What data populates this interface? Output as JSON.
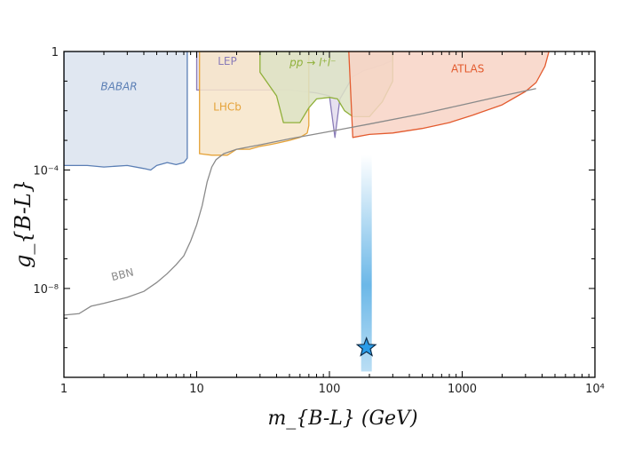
{
  "chart_data": {
    "type": "area",
    "xlabel": "m_{B-L} (GeV)",
    "ylabel": "g_{B-L}",
    "x_scale": "log",
    "y_scale": "log",
    "xlim": [
      1,
      10000
    ],
    "ylim_log10": [
      -11,
      0
    ],
    "x_tick_labels": [
      "1",
      "10",
      "100",
      "1000",
      "10⁴"
    ],
    "y_tick_labels": [
      "1",
      "10⁻⁴",
      "10⁻⁸"
    ],
    "grid": false,
    "legend": "none",
    "region_labels": {
      "babar": "BABAR",
      "lep": "LEP",
      "lhcb": "LHCb",
      "pp": "pp → l⁺l⁻",
      "atlas": "ATLAS",
      "bbn": "BBN"
    },
    "colors": {
      "babar_fill": "#dbe3ee",
      "babar_line": "#5b7fb5",
      "lep_fill": "#e3dced",
      "lep_line": "#8a7cb8",
      "lhcb_fill": "#f7e5c9",
      "lhcb_line": "#e5a33a",
      "pp_fill": "#dde3c5",
      "pp_line": "#8fb03a",
      "atlas_fill": "#f8d3c6",
      "atlas_line": "#e35b2f",
      "bbn_line": "#8a8a8a",
      "band": "#3aa0e0",
      "star_fill": "#2a9ce8"
    },
    "regions": [
      {
        "name": "BABAR",
        "boundary": [
          [
            1,
            -3.85
          ],
          [
            1.5,
            -3.85
          ],
          [
            2,
            -3.9
          ],
          [
            3,
            -3.85
          ],
          [
            4,
            -3.95
          ],
          [
            4.5,
            -4.0
          ],
          [
            5,
            -3.85
          ],
          [
            6,
            -3.75
          ],
          [
            7,
            -3.82
          ],
          [
            8,
            -3.75
          ],
          [
            8.5,
            -3.6
          ],
          [
            8.5,
            0
          ],
          [
            1,
            0
          ]
        ]
      },
      {
        "name": "LEP",
        "boundary": [
          [
            10,
            -1.3
          ],
          [
            50,
            -1.3
          ],
          [
            80,
            -1.4
          ],
          [
            100,
            -1.5
          ],
          [
            110,
            -2.9
          ],
          [
            120,
            -1.6
          ],
          [
            150,
            -0.85
          ],
          [
            180,
            -0.65
          ],
          [
            250,
            -0.45
          ],
          [
            300,
            -0.3
          ],
          [
            300,
            0
          ],
          [
            10,
            0
          ]
        ]
      },
      {
        "name": "LHCb",
        "boundary": [
          [
            10.5,
            -3.45
          ],
          [
            13,
            -3.5
          ],
          [
            17,
            -3.5
          ],
          [
            20,
            -3.3
          ],
          [
            25,
            -3.3
          ],
          [
            30,
            -3.2
          ],
          [
            35,
            -3.15
          ],
          [
            40,
            -3.1
          ],
          [
            50,
            -3.0
          ],
          [
            60,
            -2.9
          ],
          [
            68,
            -2.75
          ],
          [
            70,
            -2.5
          ],
          [
            70,
            0
          ],
          [
            10.5,
            0
          ]
        ]
      },
      {
        "name": "pp → l⁺l⁻",
        "boundary": [
          [
            30,
            -0.7
          ],
          [
            40,
            -1.5
          ],
          [
            45,
            -2.4
          ],
          [
            60,
            -2.4
          ],
          [
            70,
            -1.9
          ],
          [
            80,
            -1.6
          ],
          [
            100,
            -1.55
          ],
          [
            115,
            -1.6
          ],
          [
            130,
            -2.0
          ],
          [
            150,
            -2.2
          ],
          [
            200,
            -2.2
          ],
          [
            250,
            -1.7
          ],
          [
            300,
            -1.0
          ],
          [
            300,
            0
          ],
          [
            30,
            0
          ]
        ]
      },
      {
        "name": "ATLAS",
        "boundary": [
          [
            150,
            -2.9
          ],
          [
            200,
            -2.8
          ],
          [
            300,
            -2.75
          ],
          [
            500,
            -2.6
          ],
          [
            800,
            -2.4
          ],
          [
            1200,
            -2.15
          ],
          [
            2000,
            -1.8
          ],
          [
            3000,
            -1.35
          ],
          [
            3600,
            -1.05
          ],
          [
            4200,
            -0.5
          ],
          [
            4500,
            0
          ],
          [
            140,
            0
          ]
        ]
      }
    ],
    "bbn_curve": {
      "x": [
        1,
        1.3,
        1.6,
        2,
        3,
        4,
        5,
        6,
        7,
        8,
        9,
        10,
        11,
        12,
        13,
        14,
        16,
        20,
        30,
        50,
        100,
        200,
        500,
        1000,
        2000,
        3600
      ],
      "y": [
        -8.9,
        -8.85,
        -8.6,
        -8.5,
        -8.3,
        -8.1,
        -7.8,
        -7.5,
        -7.2,
        -6.9,
        -6.4,
        -5.85,
        -5.2,
        -4.4,
        -3.9,
        -3.65,
        -3.45,
        -3.3,
        -3.15,
        -2.95,
        -2.7,
        -2.45,
        -2.1,
        -1.8,
        -1.5,
        -1.25
      ]
    },
    "benchmark": {
      "x": 190,
      "y_log10": -10.0
    },
    "band": {
      "x": 190,
      "y_log10_range": [
        -10.8,
        -3.5
      ]
    }
  }
}
